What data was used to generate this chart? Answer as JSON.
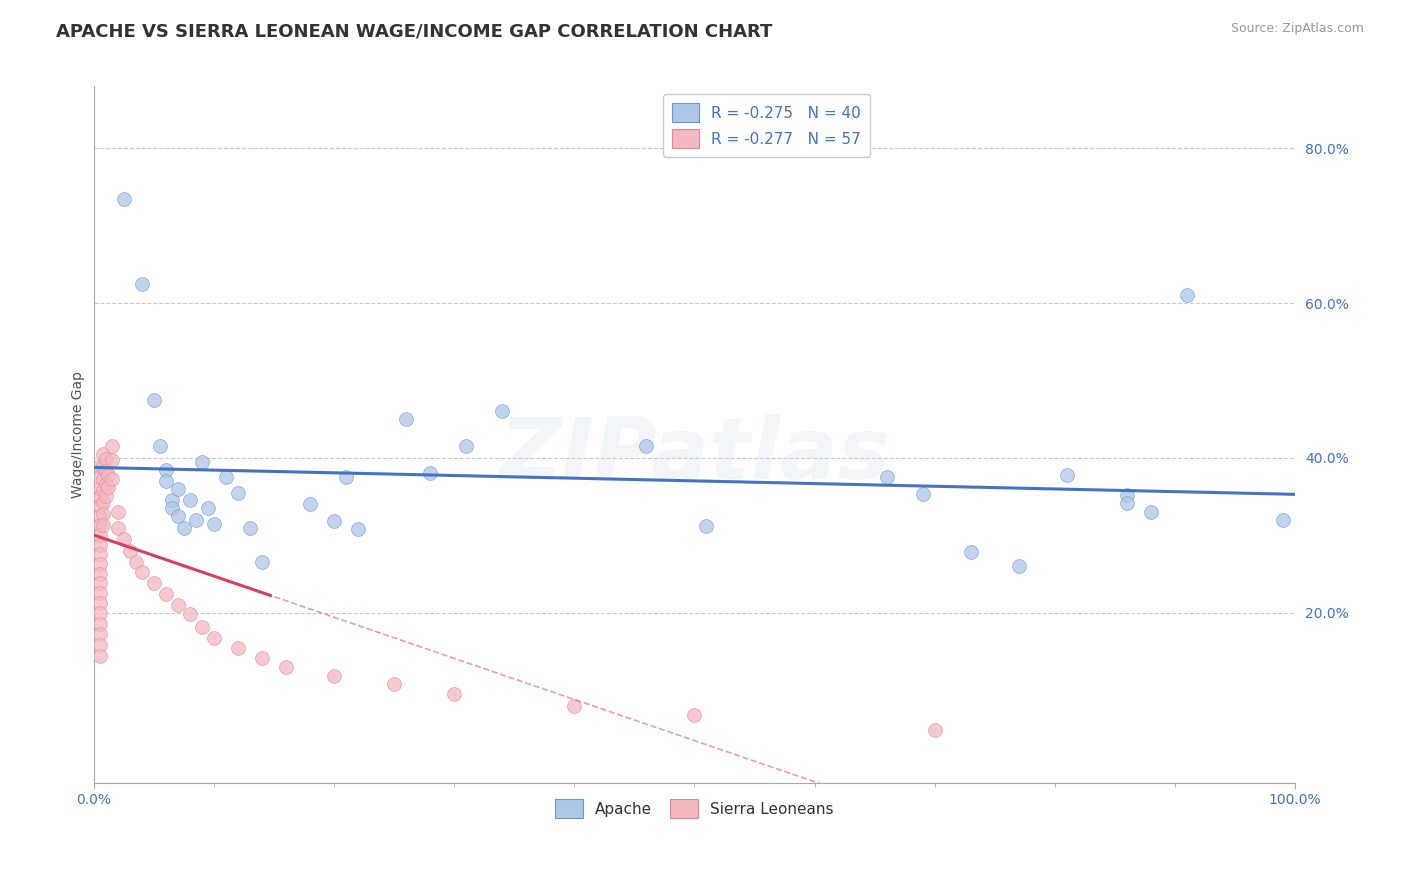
{
  "title": "APACHE VS SIERRA LEONEAN WAGE/INCOME GAP CORRELATION CHART",
  "source_text": "Source: ZipAtlas.com",
  "ylabel": "Wage/Income Gap",
  "xlim": [
    0.0,
    1.0
  ],
  "ylim": [
    -0.02,
    0.88
  ],
  "ytick_values": [
    0.2,
    0.4,
    0.6,
    0.8
  ],
  "ytick_labels": [
    "20.0%",
    "40.0%",
    "60.0%",
    "80.0%"
  ],
  "xtick_values": [
    0.0,
    1.0
  ],
  "xtick_labels": [
    "0.0%",
    "100.0%"
  ],
  "legend_entries": [
    {
      "label": "R = -0.275   N = 40",
      "color": "#aec6e8"
    },
    {
      "label": "R = -0.277   N = 57",
      "color": "#f4b8c1"
    }
  ],
  "bottom_legend": [
    {
      "label": "Apache",
      "color": "#aec6e8"
    },
    {
      "label": "Sierra Leoneans",
      "color": "#f4b8c1"
    }
  ],
  "apache_scatter": [
    [
      0.025,
      0.735
    ],
    [
      0.04,
      0.625
    ],
    [
      0.05,
      0.475
    ],
    [
      0.055,
      0.415
    ],
    [
      0.06,
      0.385
    ],
    [
      0.06,
      0.37
    ],
    [
      0.065,
      0.345
    ],
    [
      0.065,
      0.335
    ],
    [
      0.07,
      0.36
    ],
    [
      0.07,
      0.325
    ],
    [
      0.075,
      0.31
    ],
    [
      0.08,
      0.345
    ],
    [
      0.085,
      0.32
    ],
    [
      0.09,
      0.395
    ],
    [
      0.095,
      0.335
    ],
    [
      0.1,
      0.315
    ],
    [
      0.11,
      0.375
    ],
    [
      0.12,
      0.355
    ],
    [
      0.13,
      0.31
    ],
    [
      0.14,
      0.265
    ],
    [
      0.18,
      0.34
    ],
    [
      0.2,
      0.318
    ],
    [
      0.21,
      0.375
    ],
    [
      0.22,
      0.308
    ],
    [
      0.26,
      0.45
    ],
    [
      0.28,
      0.38
    ],
    [
      0.31,
      0.415
    ],
    [
      0.34,
      0.46
    ],
    [
      0.46,
      0.415
    ],
    [
      0.51,
      0.312
    ],
    [
      0.66,
      0.376
    ],
    [
      0.69,
      0.353
    ],
    [
      0.73,
      0.278
    ],
    [
      0.77,
      0.26
    ],
    [
      0.81,
      0.378
    ],
    [
      0.86,
      0.352
    ],
    [
      0.86,
      0.342
    ],
    [
      0.88,
      0.33
    ],
    [
      0.91,
      0.61
    ],
    [
      0.99,
      0.32
    ]
  ],
  "sierra_scatter": [
    [
      0.005,
      0.39
    ],
    [
      0.005,
      0.375
    ],
    [
      0.005,
      0.36
    ],
    [
      0.005,
      0.35
    ],
    [
      0.005,
      0.338
    ],
    [
      0.005,
      0.325
    ],
    [
      0.005,
      0.313
    ],
    [
      0.005,
      0.3
    ],
    [
      0.005,
      0.288
    ],
    [
      0.005,
      0.276
    ],
    [
      0.005,
      0.263
    ],
    [
      0.005,
      0.25
    ],
    [
      0.005,
      0.238
    ],
    [
      0.005,
      0.225
    ],
    [
      0.005,
      0.212
    ],
    [
      0.005,
      0.2
    ],
    [
      0.005,
      0.186
    ],
    [
      0.005,
      0.172
    ],
    [
      0.005,
      0.158
    ],
    [
      0.005,
      0.144
    ],
    [
      0.008,
      0.405
    ],
    [
      0.008,
      0.388
    ],
    [
      0.008,
      0.373
    ],
    [
      0.008,
      0.358
    ],
    [
      0.008,
      0.343
    ],
    [
      0.008,
      0.328
    ],
    [
      0.008,
      0.313
    ],
    [
      0.01,
      0.398
    ],
    [
      0.01,
      0.383
    ],
    [
      0.01,
      0.366
    ],
    [
      0.01,
      0.351
    ],
    [
      0.012,
      0.378
    ],
    [
      0.012,
      0.362
    ],
    [
      0.015,
      0.415
    ],
    [
      0.015,
      0.397
    ],
    [
      0.015,
      0.373
    ],
    [
      0.02,
      0.33
    ],
    [
      0.02,
      0.31
    ],
    [
      0.025,
      0.295
    ],
    [
      0.03,
      0.28
    ],
    [
      0.035,
      0.265
    ],
    [
      0.04,
      0.252
    ],
    [
      0.05,
      0.238
    ],
    [
      0.06,
      0.224
    ],
    [
      0.07,
      0.21
    ],
    [
      0.08,
      0.198
    ],
    [
      0.09,
      0.182
    ],
    [
      0.1,
      0.168
    ],
    [
      0.12,
      0.155
    ],
    [
      0.14,
      0.142
    ],
    [
      0.16,
      0.13
    ],
    [
      0.2,
      0.118
    ],
    [
      0.25,
      0.108
    ],
    [
      0.3,
      0.095
    ],
    [
      0.4,
      0.08
    ],
    [
      0.5,
      0.068
    ],
    [
      0.7,
      0.048
    ]
  ],
  "apache_line_color": "#4472c4",
  "sierra_line_color": "#d44060",
  "scatter_apache_color": "#aec6e8",
  "scatter_sierra_color": "#f4b8c1",
  "scatter_apache_edge": "#6699cc",
  "scatter_sierra_edge": "#e08898",
  "scatter_alpha": 0.75,
  "scatter_size": 100,
  "grid_color": "#cccccc",
  "grid_linestyle": "--",
  "watermark_text": "ZIPatlas",
  "watermark_alpha": 0.18,
  "background_color": "#ffffff",
  "title_fontsize": 13,
  "axis_label_fontsize": 10,
  "tick_fontsize": 10,
  "legend_fontsize": 11,
  "tick_color": "#4472c4"
}
